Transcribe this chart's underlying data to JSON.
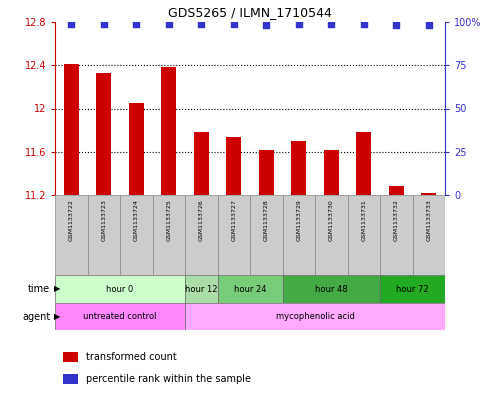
{
  "title": "GDS5265 / ILMN_1710544",
  "samples": [
    "GSM1133722",
    "GSM1133723",
    "GSM1133724",
    "GSM1133725",
    "GSM1133726",
    "GSM1133727",
    "GSM1133728",
    "GSM1133729",
    "GSM1133730",
    "GSM1133731",
    "GSM1133732",
    "GSM1133733"
  ],
  "bar_values": [
    12.41,
    12.33,
    12.05,
    12.38,
    11.78,
    11.74,
    11.62,
    11.7,
    11.62,
    11.78,
    11.28,
    11.22
  ],
  "percentile_values": [
    99,
    99,
    99,
    99,
    99,
    99,
    98,
    99,
    99,
    99,
    98,
    98
  ],
  "bar_color": "#cc0000",
  "percentile_color": "#3333cc",
  "ymin": 11.2,
  "ymax": 12.8,
  "yticks_left": [
    11.2,
    11.6,
    12.0,
    12.4,
    12.8
  ],
  "yticks_right": [
    0,
    25,
    50,
    75,
    100
  ],
  "dotted_lines": [
    11.6,
    12.0,
    12.4
  ],
  "time_groups": [
    {
      "label": "hour 0",
      "start": 0,
      "end": 3,
      "color": "#ccffcc"
    },
    {
      "label": "hour 12",
      "start": 4,
      "end": 4,
      "color": "#aaddaa"
    },
    {
      "label": "hour 24",
      "start": 5,
      "end": 6,
      "color": "#77cc77"
    },
    {
      "label": "hour 48",
      "start": 7,
      "end": 9,
      "color": "#44aa44"
    },
    {
      "label": "hour 72",
      "start": 10,
      "end": 11,
      "color": "#22aa22"
    }
  ],
  "agent_groups": [
    {
      "label": "untreated control",
      "start": 0,
      "end": 3,
      "color": "#ff88ff"
    },
    {
      "label": "mycophenolic acid",
      "start": 4,
      "end": 11,
      "color": "#ffaaff"
    }
  ],
  "legend_bar_label": "transformed count",
  "legend_dot_label": "percentile rank within the sample",
  "time_label": "time",
  "agent_label": "agent",
  "left_axis_color": "#cc0000",
  "right_axis_color": "#3333cc",
  "sample_box_color": "#cccccc",
  "sample_box_edge": "#888888"
}
